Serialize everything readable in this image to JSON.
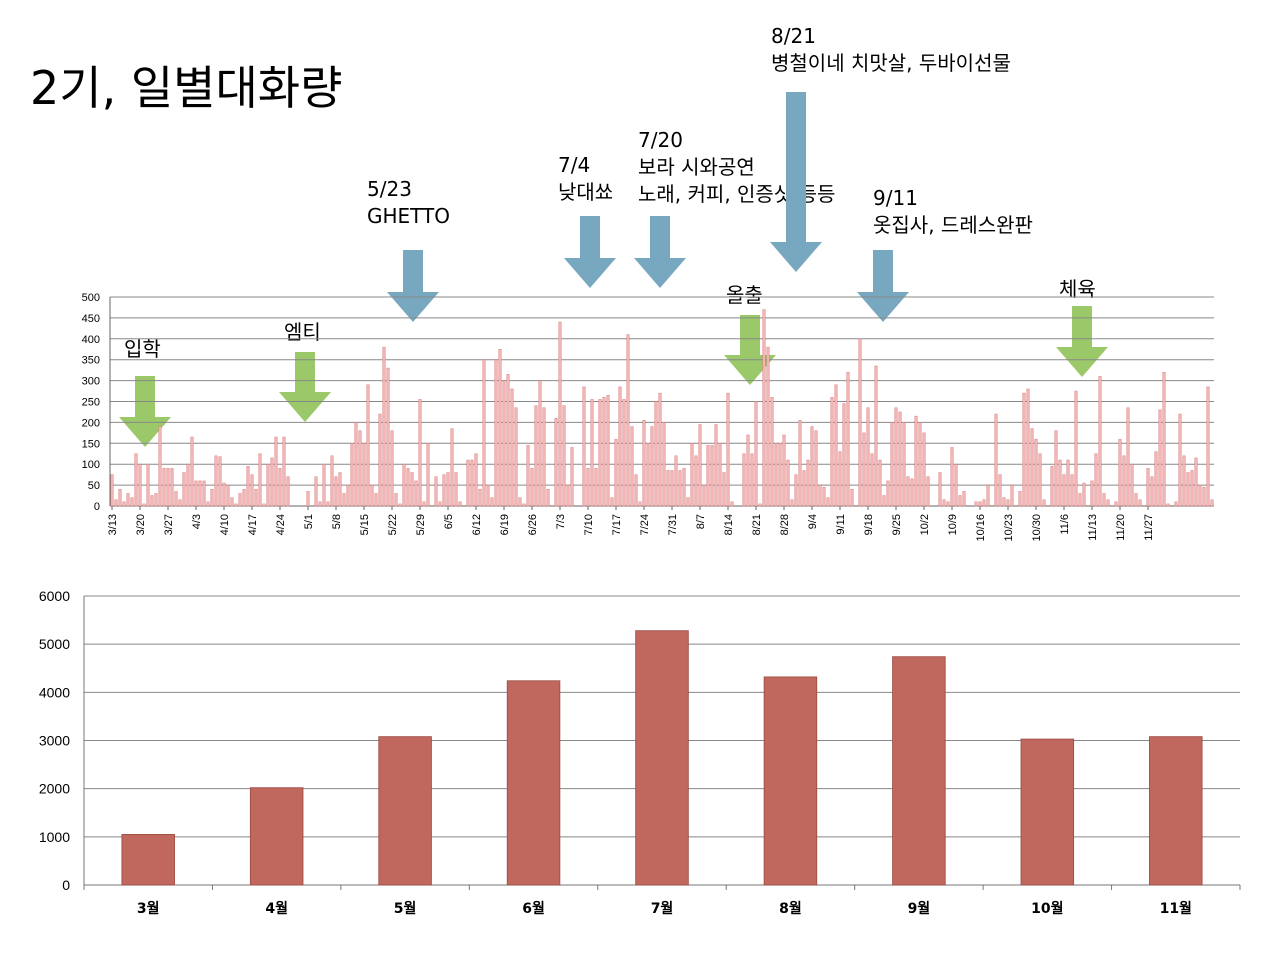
{
  "page": {
    "title": "2기, 일별대화량"
  },
  "colors": {
    "daily_bar": "#f2b8b8",
    "daily_bar_edge": "#d97b7b",
    "monthly_bar": "#c0675e",
    "grid": "#888888",
    "blue_arrow": "#78a8c0",
    "green_arrow": "#9bc96a"
  },
  "annotations": [
    {
      "id": "ann-0523",
      "lines": [
        "5/23",
        "GHETTO"
      ],
      "arrow": "blue"
    },
    {
      "id": "ann-0704",
      "lines": [
        "7/4",
        "낮대쑈"
      ],
      "arrow": "blue"
    },
    {
      "id": "ann-0720",
      "lines": [
        "7/20",
        "보라 시와공연",
        "노래, 커피, 인증샷 등등"
      ],
      "arrow": "blue"
    },
    {
      "id": "ann-0821",
      "lines": [
        "8/21",
        "병철이네 치맛살, 두바이선물"
      ],
      "arrow": "blue"
    },
    {
      "id": "ann-0911",
      "lines": [
        "9/11",
        "옷집사, 드레스완판"
      ],
      "arrow": "blue"
    },
    {
      "id": "ann-ipak",
      "lines": [
        "입학"
      ],
      "arrow": "green"
    },
    {
      "id": "ann-mt",
      "lines": [
        "엠티"
      ],
      "arrow": "green"
    },
    {
      "id": "ann-olchul",
      "lines": [
        "올출"
      ],
      "arrow": "green"
    },
    {
      "id": "ann-cheyuk",
      "lines": [
        "체육"
      ],
      "arrow": "green"
    }
  ],
  "chart_data": [
    {
      "type": "bar",
      "start_date": "3/13",
      "ylim": [
        0,
        500
      ],
      "yticks": [
        0,
        50,
        100,
        150,
        200,
        250,
        300,
        350,
        400,
        450,
        500
      ],
      "xtick_labels": [
        "3/13",
        "3/20",
        "3/27",
        "4/3",
        "4/10",
        "4/17",
        "4/24",
        "5/1",
        "5/8",
        "5/15",
        "5/22",
        "5/29",
        "6/5",
        "6/12",
        "6/19",
        "6/26",
        "7/3",
        "7/10",
        "7/17",
        "7/24",
        "7/31",
        "8/7",
        "8/14",
        "8/21",
        "8/28",
        "9/4",
        "9/11",
        "9/18",
        "9/25",
        "10/2",
        "10/9",
        "10/16",
        "10/23",
        "10/30",
        "11/6",
        "11/13",
        "11/20",
        "11/27"
      ],
      "grid": true,
      "values": [
        75,
        15,
        40,
        10,
        30,
        20,
        125,
        100,
        5,
        100,
        25,
        30,
        190,
        90,
        90,
        90,
        35,
        15,
        80,
        100,
        165,
        60,
        60,
        60,
        10,
        40,
        120,
        118,
        55,
        50,
        20,
        5,
        30,
        40,
        95,
        75,
        40,
        125,
        5,
        100,
        115,
        165,
        90,
        165,
        70,
        0,
        0,
        0,
        0,
        35,
        0,
        70,
        10,
        100,
        10,
        120,
        70,
        80,
        30,
        50,
        150,
        200,
        180,
        150,
        290,
        50,
        30,
        220,
        380,
        330,
        180,
        30,
        5,
        100,
        90,
        80,
        60,
        255,
        10,
        150,
        0,
        70,
        10,
        75,
        80,
        185,
        80,
        10,
        0,
        110,
        110,
        125,
        40,
        350,
        50,
        20,
        350,
        375,
        300,
        315,
        280,
        235,
        20,
        5,
        145,
        90,
        240,
        300,
        235,
        40,
        0,
        210,
        440,
        240,
        50,
        140,
        0,
        0,
        285,
        90,
        255,
        90,
        255,
        260,
        265,
        20,
        160,
        285,
        255,
        410,
        190,
        75,
        10,
        205,
        150,
        190,
        250,
        270,
        200,
        85,
        85,
        120,
        85,
        90,
        20,
        150,
        120,
        195,
        50,
        145,
        145,
        195,
        150,
        80,
        270,
        10,
        0,
        0,
        125,
        170,
        125,
        250,
        5,
        470,
        380,
        260,
        150,
        150,
        170,
        110,
        15,
        75,
        205,
        85,
        110,
        190,
        180,
        50,
        45,
        20,
        260,
        290,
        130,
        245,
        320,
        40,
        0,
        400,
        175,
        235,
        125,
        335,
        110,
        25,
        60,
        200,
        235,
        225,
        200,
        70,
        65,
        215,
        200,
        175,
        70,
        0,
        0,
        80,
        15,
        10,
        140,
        100,
        25,
        35,
        0,
        0,
        10,
        10,
        15,
        50,
        0,
        220,
        75,
        20,
        15,
        50,
        0,
        35,
        270,
        280,
        185,
        160,
        125,
        15,
        0,
        95,
        180,
        110,
        75,
        110,
        75,
        275,
        30,
        55,
        0,
        60,
        125,
        310,
        30,
        15,
        0,
        10,
        160,
        120,
        235,
        100,
        30,
        15,
        0,
        90,
        70,
        130,
        230,
        320,
        5,
        0,
        10,
        220,
        120,
        80,
        85,
        115,
        50,
        45,
        285,
        15
      ]
    },
    {
      "type": "bar",
      "categories": [
        "3월",
        "4월",
        "5월",
        "6월",
        "7월",
        "8월",
        "9월",
        "10월",
        "11월"
      ],
      "values": [
        1050,
        2020,
        3080,
        4240,
        5280,
        4320,
        4740,
        3030,
        3080
      ],
      "ylim": [
        0,
        6000
      ],
      "yticks": [
        0,
        1000,
        2000,
        3000,
        4000,
        5000,
        6000
      ],
      "grid": true
    }
  ]
}
